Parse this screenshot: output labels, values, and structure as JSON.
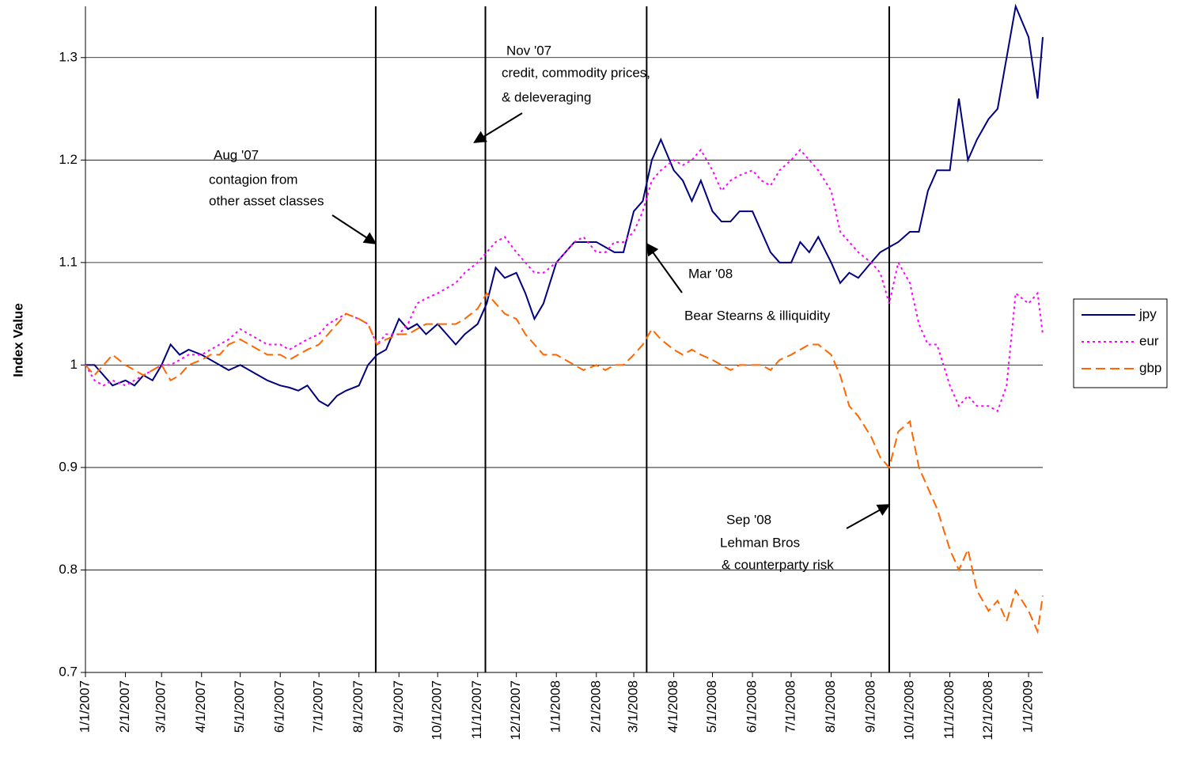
{
  "chart_data": {
    "type": "line",
    "y_label": "Index Value",
    "x": [
      "1/1/2007",
      "1/8/2007",
      "1/15/2007",
      "1/22/2007",
      "2/1/2007",
      "2/8/2007",
      "2/15/2007",
      "2/22/2007",
      "3/1/2007",
      "3/8/2007",
      "3/15/2007",
      "3/22/2007",
      "4/1/2007",
      "4/8/2007",
      "4/15/2007",
      "4/22/2007",
      "5/1/2007",
      "5/8/2007",
      "5/15/2007",
      "5/22/2007",
      "6/1/2007",
      "6/8/2007",
      "6/15/2007",
      "6/22/2007",
      "7/1/2007",
      "7/8/2007",
      "7/15/2007",
      "7/22/2007",
      "8/1/2007",
      "8/8/2007",
      "8/15/2007",
      "8/22/2007",
      "9/1/2007",
      "9/8/2007",
      "9/15/2007",
      "9/22/2007",
      "10/1/2007",
      "10/8/2007",
      "10/15/2007",
      "10/22/2007",
      "11/1/2007",
      "11/8/2007",
      "11/15/2007",
      "11/22/2007",
      "12/1/2007",
      "12/8/2007",
      "12/15/2007",
      "12/22/2007",
      "1/1/2008",
      "1/8/2008",
      "1/15/2008",
      "1/22/2008",
      "2/1/2008",
      "2/8/2008",
      "2/15/2008",
      "2/22/2008",
      "3/1/2008",
      "3/8/2008",
      "3/15/2008",
      "3/22/2008",
      "4/1/2008",
      "4/8/2008",
      "4/15/2008",
      "4/22/2008",
      "5/1/2008",
      "5/8/2008",
      "5/15/2008",
      "5/22/2008",
      "6/1/2008",
      "6/8/2008",
      "6/15/2008",
      "6/22/2008",
      "7/1/2008",
      "7/8/2008",
      "7/15/2008",
      "7/22/2008",
      "8/1/2008",
      "8/8/2008",
      "8/15/2008",
      "8/22/2008",
      "9/1/2008",
      "9/8/2008",
      "9/15/2008",
      "9/22/2008",
      "10/1/2008",
      "10/8/2008",
      "10/15/2008",
      "10/22/2008",
      "11/1/2008",
      "11/8/2008",
      "11/15/2008",
      "11/22/2008",
      "12/1/2008",
      "12/8/2008",
      "12/15/2008",
      "12/22/2008",
      "1/1/2009",
      "1/8/2009",
      "1/12/2009"
    ],
    "series": [
      {
        "name": "jpy",
        "color": "#000080",
        "dash": "solid",
        "values": [
          1.0,
          1.0,
          0.99,
          0.98,
          0.985,
          0.98,
          0.99,
          0.985,
          1.0,
          1.02,
          1.01,
          1.015,
          1.01,
          1.005,
          1.0,
          0.995,
          1.0,
          0.995,
          0.99,
          0.985,
          0.98,
          0.978,
          0.975,
          0.98,
          0.965,
          0.96,
          0.97,
          0.975,
          0.98,
          1.0,
          1.01,
          1.015,
          1.045,
          1.035,
          1.04,
          1.03,
          1.04,
          1.03,
          1.02,
          1.03,
          1.04,
          1.06,
          1.095,
          1.085,
          1.09,
          1.07,
          1.045,
          1.06,
          1.1,
          1.11,
          1.12,
          1.12,
          1.12,
          1.115,
          1.11,
          1.11,
          1.15,
          1.16,
          1.2,
          1.22,
          1.19,
          1.18,
          1.16,
          1.18,
          1.15,
          1.14,
          1.14,
          1.15,
          1.15,
          1.13,
          1.11,
          1.1,
          1.1,
          1.12,
          1.11,
          1.125,
          1.1,
          1.08,
          1.09,
          1.085,
          1.1,
          1.11,
          1.115,
          1.12,
          1.13,
          1.13,
          1.17,
          1.19,
          1.19,
          1.26,
          1.2,
          1.22,
          1.24,
          1.25,
          1.3,
          1.35,
          1.32,
          1.26,
          1.32
        ]
      },
      {
        "name": "eur",
        "color": "#ff00ff",
        "dash": "dotted",
        "values": [
          1.0,
          0.985,
          0.98,
          0.985,
          0.98,
          0.985,
          0.99,
          0.995,
          1.0,
          1.0,
          1.005,
          1.01,
          1.01,
          1.015,
          1.02,
          1.025,
          1.035,
          1.03,
          1.025,
          1.02,
          1.02,
          1.015,
          1.02,
          1.025,
          1.03,
          1.04,
          1.045,
          1.05,
          1.045,
          1.04,
          1.02,
          1.03,
          1.03,
          1.04,
          1.06,
          1.065,
          1.07,
          1.075,
          1.08,
          1.09,
          1.1,
          1.11,
          1.12,
          1.125,
          1.11,
          1.1,
          1.09,
          1.09,
          1.1,
          1.11,
          1.12,
          1.125,
          1.11,
          1.11,
          1.12,
          1.12,
          1.13,
          1.15,
          1.18,
          1.19,
          1.2,
          1.195,
          1.2,
          1.21,
          1.19,
          1.17,
          1.18,
          1.185,
          1.19,
          1.18,
          1.175,
          1.19,
          1.2,
          1.21,
          1.2,
          1.19,
          1.17,
          1.13,
          1.12,
          1.11,
          1.1,
          1.09,
          1.06,
          1.1,
          1.08,
          1.04,
          1.02,
          1.02,
          0.98,
          0.96,
          0.97,
          0.96,
          0.96,
          0.955,
          0.98,
          1.07,
          1.06,
          1.07,
          1.03
        ]
      },
      {
        "name": "gbp",
        "color": "#ff6600",
        "dash": "dashed",
        "values": [
          1.0,
          0.99,
          1.0,
          1.01,
          1.0,
          0.995,
          0.99,
          0.995,
          1.0,
          0.985,
          0.99,
          1.0,
          1.005,
          1.01,
          1.01,
          1.02,
          1.025,
          1.02,
          1.015,
          1.01,
          1.01,
          1.005,
          1.01,
          1.015,
          1.02,
          1.03,
          1.04,
          1.05,
          1.045,
          1.04,
          1.02,
          1.025,
          1.03,
          1.03,
          1.035,
          1.04,
          1.04,
          1.04,
          1.04,
          1.045,
          1.055,
          1.07,
          1.06,
          1.05,
          1.045,
          1.03,
          1.02,
          1.01,
          1.01,
          1.005,
          1.0,
          0.995,
          1.0,
          0.995,
          1.0,
          1.0,
          1.01,
          1.02,
          1.035,
          1.025,
          1.015,
          1.01,
          1.015,
          1.01,
          1.005,
          1.0,
          0.995,
          1.0,
          1.0,
          1.0,
          0.995,
          1.005,
          1.01,
          1.015,
          1.02,
          1.02,
          1.01,
          0.99,
          0.96,
          0.95,
          0.93,
          0.91,
          0.9,
          0.935,
          0.945,
          0.9,
          0.88,
          0.86,
          0.82,
          0.8,
          0.82,
          0.78,
          0.76,
          0.77,
          0.75,
          0.78,
          0.76,
          0.74,
          0.775
        ]
      }
    ],
    "xlim": [
      "1/1/2007",
      "1/12/2009"
    ],
    "xticks": [
      "1/1/2007",
      "2/1/2007",
      "3/1/2007",
      "4/1/2007",
      "5/1/2007",
      "6/1/2007",
      "7/1/2007",
      "8/1/2007",
      "9/1/2007",
      "10/1/2007",
      "11/1/2007",
      "12/1/2007",
      "1/1/2008",
      "2/1/2008",
      "3/1/2008",
      "4/1/2008",
      "5/1/2008",
      "6/1/2008",
      "7/1/2008",
      "8/1/2008",
      "9/1/2008",
      "10/1/2008",
      "11/1/2008",
      "12/1/2008",
      "1/1/2009"
    ],
    "ylim": [
      0.7,
      1.35
    ],
    "yticks": [
      0.7,
      0.8,
      0.9,
      1,
      1.1,
      1.2,
      1.3
    ],
    "grid": true,
    "legend": "right",
    "events": [
      {
        "date": "8/14/2007",
        "text": [
          "Aug '07",
          "contagion from",
          "other asset classes"
        ]
      },
      {
        "date": "11/7/2007",
        "text": [
          "Nov '07",
          "credit, commodity prices,",
          "& deleveraging"
        ]
      },
      {
        "date": "3/11/2008",
        "text": [
          "Mar '08",
          "Bear Stearns & illiquidity"
        ]
      },
      {
        "date": "9/15/2008",
        "text": [
          "Sep '08",
          "Lehman Bros",
          "& counterparty risk"
        ]
      }
    ]
  }
}
